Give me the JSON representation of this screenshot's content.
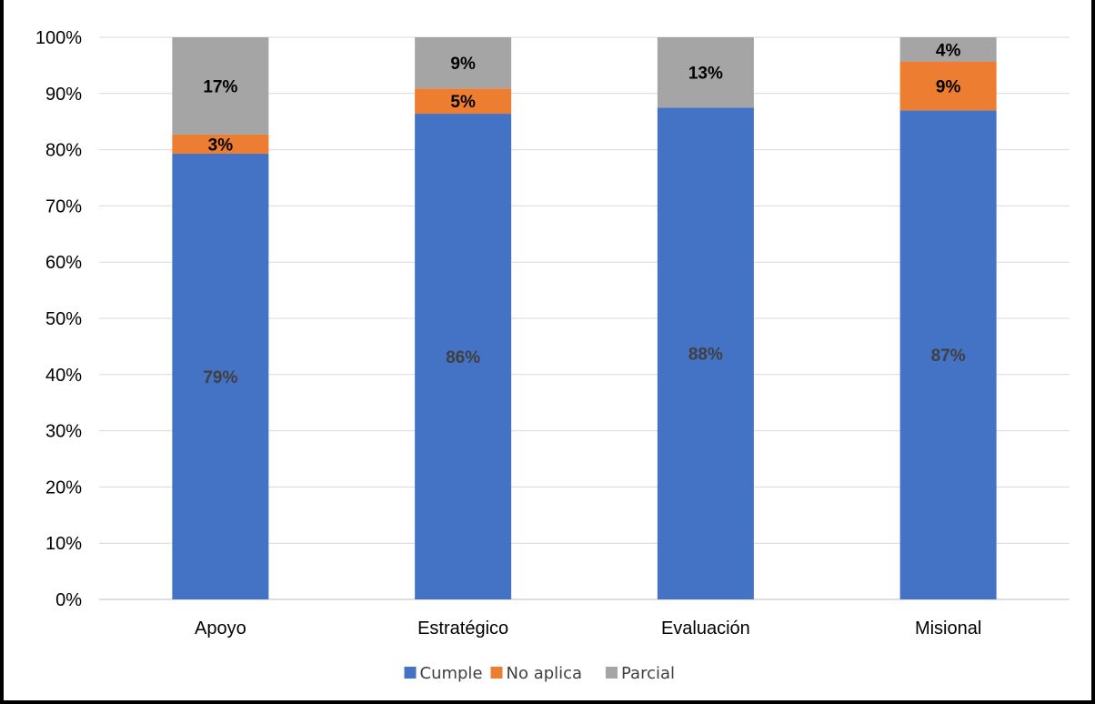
{
  "chart_data": {
    "type": "bar",
    "stacked": true,
    "title": "",
    "xlabel": "",
    "ylabel": "",
    "ylim": [
      0,
      100
    ],
    "yticks": [
      "0%",
      "10%",
      "20%",
      "30%",
      "40%",
      "50%",
      "60%",
      "70%",
      "80%",
      "90%",
      "100%"
    ],
    "categories": [
      "Apoyo",
      "Estratégico",
      "Evaluación",
      "Misional"
    ],
    "series": [
      {
        "name": "Cumple",
        "color": "#4472C4",
        "label_color": "#404040",
        "values": [
          79.3,
          86.4,
          87.5,
          87.0
        ],
        "labels": [
          "79%",
          "86%",
          "88%",
          "87%"
        ]
      },
      {
        "name": "No aplica",
        "color": "#ED7D31",
        "label_color": "#000000",
        "values": [
          3.4,
          4.5,
          0,
          8.7
        ],
        "labels": [
          "3%",
          "5%",
          "",
          "9%"
        ]
      },
      {
        "name": "Parcial",
        "color": "#A5A5A5",
        "label_color": "#000000",
        "values": [
          17.3,
          9.1,
          12.5,
          4.3
        ],
        "labels": [
          "17%",
          "9%",
          "13%",
          "4%"
        ]
      }
    ],
    "grid": true,
    "legend_position": "bottom"
  }
}
